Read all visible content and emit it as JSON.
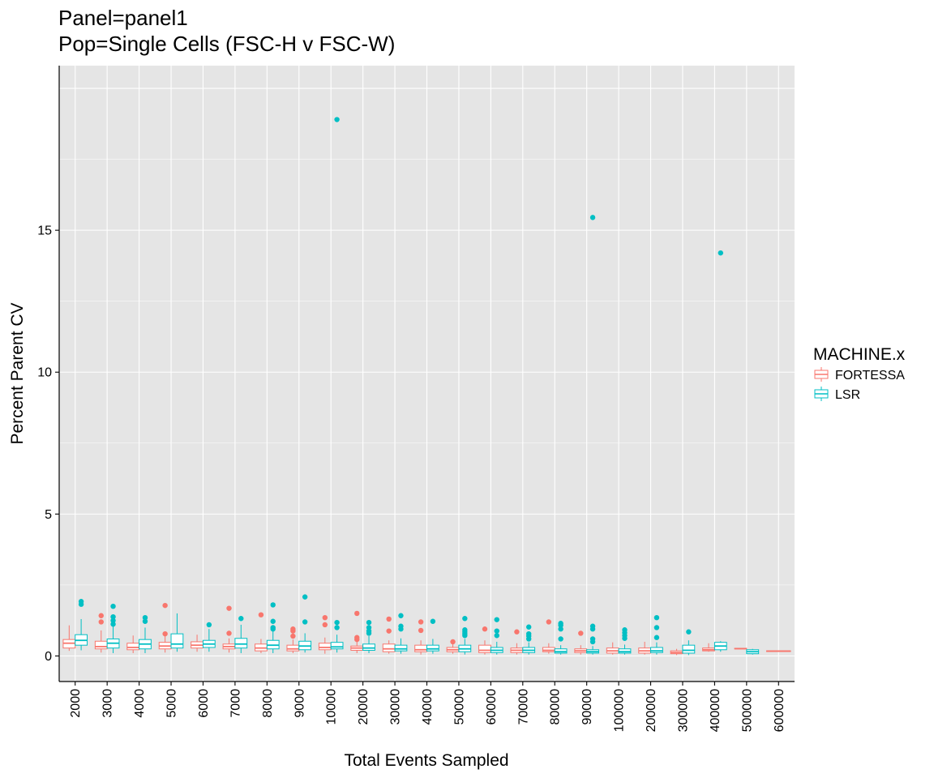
{
  "title_lines": [
    "Panel=panel1",
    "Pop=Single Cells (FSC-H v FSC-W)"
  ],
  "colors": {
    "panel_bg": "#E5E5E5",
    "grid": "#FFFFFF",
    "FORTESSA": "#F8766D",
    "LSR": "#00BFC4"
  },
  "chart_data": {
    "type": "boxplot",
    "title": "Panel=panel1\nPop=Single Cells (FSC-H v FSC-W)",
    "xlabel": "Total Events Sampled",
    "ylabel": "Percent Parent CV",
    "ylim": [
      -0.9,
      20.8
    ],
    "y_ticks": [
      0,
      5,
      10,
      15
    ],
    "grid": true,
    "legend": {
      "title": "MACHINE.x",
      "position": "right",
      "entries": [
        "FORTESSA",
        "LSR"
      ]
    },
    "categories": [
      "2000",
      "3000",
      "4000",
      "5000",
      "6000",
      "7000",
      "8000",
      "9000",
      "10000",
      "20000",
      "30000",
      "40000",
      "50000",
      "60000",
      "70000",
      "80000",
      "90000",
      "100000",
      "200000",
      "300000",
      "400000",
      "500000",
      "600000"
    ],
    "series": [
      {
        "name": "FORTESSA",
        "boxes": [
          {
            "x": "2000",
            "min": 0.18,
            "q1": 0.28,
            "median": 0.45,
            "q3": 0.58,
            "max": 1.08,
            "outliers": []
          },
          {
            "x": "3000",
            "min": 0.12,
            "q1": 0.25,
            "median": 0.33,
            "q3": 0.52,
            "max": 0.9,
            "outliers": [
              1.42,
              1.2
            ]
          },
          {
            "x": "4000",
            "min": 0.1,
            "q1": 0.22,
            "median": 0.3,
            "q3": 0.45,
            "max": 0.72,
            "outliers": []
          },
          {
            "x": "5000",
            "min": 0.12,
            "q1": 0.25,
            "median": 0.35,
            "q3": 0.48,
            "max": 0.72,
            "outliers": [
              1.78,
              0.78
            ]
          },
          {
            "x": "6000",
            "min": 0.15,
            "q1": 0.28,
            "median": 0.38,
            "q3": 0.5,
            "max": 0.75,
            "outliers": []
          },
          {
            "x": "7000",
            "min": 0.12,
            "q1": 0.25,
            "median": 0.33,
            "q3": 0.42,
            "max": 0.62,
            "outliers": [
              1.68,
              0.8
            ]
          },
          {
            "x": "8000",
            "min": 0.1,
            "q1": 0.18,
            "median": 0.28,
            "q3": 0.42,
            "max": 0.6,
            "outliers": [
              1.45
            ]
          },
          {
            "x": "9000",
            "min": 0.1,
            "q1": 0.18,
            "median": 0.25,
            "q3": 0.38,
            "max": 0.58,
            "outliers": [
              0.95,
              0.88,
              0.7
            ]
          },
          {
            "x": "10000",
            "min": 0.08,
            "q1": 0.22,
            "median": 0.3,
            "q3": 0.45,
            "max": 0.65,
            "outliers": [
              1.35,
              1.1
            ]
          },
          {
            "x": "20000",
            "min": 0.1,
            "q1": 0.2,
            "median": 0.28,
            "q3": 0.35,
            "max": 0.5,
            "outliers": [
              1.5,
              0.65,
              0.58
            ]
          },
          {
            "x": "30000",
            "min": 0.08,
            "q1": 0.15,
            "median": 0.25,
            "q3": 0.42,
            "max": 0.55,
            "outliers": [
              1.3,
              0.88
            ]
          },
          {
            "x": "40000",
            "min": 0.05,
            "q1": 0.15,
            "median": 0.22,
            "q3": 0.38,
            "max": 0.55,
            "outliers": [
              1.2,
              0.9
            ]
          },
          {
            "x": "50000",
            "min": 0.08,
            "q1": 0.15,
            "median": 0.22,
            "q3": 0.3,
            "max": 0.42,
            "outliers": [
              0.5
            ]
          },
          {
            "x": "60000",
            "min": 0.05,
            "q1": 0.12,
            "median": 0.2,
            "q3": 0.38,
            "max": 0.55,
            "outliers": [
              0.95
            ]
          },
          {
            "x": "70000",
            "min": 0.05,
            "q1": 0.12,
            "median": 0.2,
            "q3": 0.28,
            "max": 0.45,
            "outliers": [
              0.85
            ]
          },
          {
            "x": "80000",
            "min": 0.08,
            "q1": 0.15,
            "median": 0.2,
            "q3": 0.3,
            "max": 0.45,
            "outliers": [
              1.2
            ]
          },
          {
            "x": "90000",
            "min": 0.05,
            "q1": 0.12,
            "median": 0.18,
            "q3": 0.25,
            "max": 0.38,
            "outliers": [
              0.8
            ]
          },
          {
            "x": "100000",
            "min": 0.05,
            "q1": 0.1,
            "median": 0.18,
            "q3": 0.28,
            "max": 0.48,
            "outliers": []
          },
          {
            "x": "200000",
            "min": 0.05,
            "q1": 0.1,
            "median": 0.18,
            "q3": 0.28,
            "max": 0.5,
            "outliers": []
          },
          {
            "x": "300000",
            "min": 0.03,
            "q1": 0.08,
            "median": 0.12,
            "q3": 0.18,
            "max": 0.25,
            "outliers": []
          },
          {
            "x": "400000",
            "min": 0.15,
            "q1": 0.18,
            "median": 0.22,
            "q3": 0.28,
            "max": 0.45,
            "outliers": []
          },
          {
            "x": "500000",
            "min": 0.24,
            "q1": 0.25,
            "median": 0.26,
            "q3": 0.27,
            "max": 0.28,
            "outliers": []
          },
          {
            "x": "600000",
            "min": 0.15,
            "q1": 0.16,
            "median": 0.17,
            "q3": 0.18,
            "max": 0.19,
            "outliers": []
          }
        ]
      },
      {
        "name": "LSR",
        "boxes": [
          {
            "x": "2000",
            "min": 0.2,
            "q1": 0.38,
            "median": 0.55,
            "q3": 0.75,
            "max": 1.3,
            "outliers": [
              1.92,
              1.82
            ]
          },
          {
            "x": "3000",
            "min": 0.1,
            "q1": 0.28,
            "median": 0.45,
            "q3": 0.6,
            "max": 1.05,
            "outliers": [
              1.75,
              1.38,
              1.25,
              1.12
            ]
          },
          {
            "x": "4000",
            "min": 0.1,
            "q1": 0.25,
            "median": 0.42,
            "q3": 0.58,
            "max": 1.0,
            "outliers": [
              1.35,
              1.22
            ]
          },
          {
            "x": "5000",
            "min": 0.15,
            "q1": 0.28,
            "median": 0.42,
            "q3": 0.78,
            "max": 1.5,
            "outliers": []
          },
          {
            "x": "6000",
            "min": 0.15,
            "q1": 0.3,
            "median": 0.42,
            "q3": 0.55,
            "max": 0.95,
            "outliers": [
              1.1
            ]
          },
          {
            "x": "7000",
            "min": 0.1,
            "q1": 0.28,
            "median": 0.42,
            "q3": 0.62,
            "max": 1.1,
            "outliers": [
              1.32
            ]
          },
          {
            "x": "8000",
            "min": 0.1,
            "q1": 0.25,
            "median": 0.38,
            "q3": 0.55,
            "max": 0.9,
            "outliers": [
              1.8,
              1.22,
              1.0,
              0.95
            ]
          },
          {
            "x": "9000",
            "min": 0.12,
            "q1": 0.22,
            "median": 0.35,
            "q3": 0.52,
            "max": 0.8,
            "outliers": [
              2.08,
              1.2
            ]
          },
          {
            "x": "10000",
            "min": 0.12,
            "q1": 0.25,
            "median": 0.32,
            "q3": 0.48,
            "max": 0.75,
            "outliers": [
              18.9,
              1.18,
              1.0
            ]
          },
          {
            "x": "20000",
            "min": 0.1,
            "q1": 0.2,
            "median": 0.28,
            "q3": 0.42,
            "max": 0.7,
            "outliers": [
              1.18,
              1.0,
              0.88,
              0.8
            ]
          },
          {
            "x": "30000",
            "min": 0.08,
            "q1": 0.18,
            "median": 0.25,
            "q3": 0.38,
            "max": 0.62,
            "outliers": [
              1.42,
              1.05,
              0.95
            ]
          },
          {
            "x": "40000",
            "min": 0.08,
            "q1": 0.18,
            "median": 0.25,
            "q3": 0.38,
            "max": 0.6,
            "outliers": [
              1.22
            ]
          },
          {
            "x": "50000",
            "min": 0.05,
            "q1": 0.15,
            "median": 0.25,
            "q3": 0.38,
            "max": 0.6,
            "outliers": [
              1.32,
              0.92,
              0.85,
              0.78,
              0.72
            ]
          },
          {
            "x": "60000",
            "min": 0.05,
            "q1": 0.12,
            "median": 0.2,
            "q3": 0.3,
            "max": 0.5,
            "outliers": [
              1.28,
              0.88,
              0.72
            ]
          },
          {
            "x": "70000",
            "min": 0.05,
            "q1": 0.12,
            "median": 0.2,
            "q3": 0.3,
            "max": 0.48,
            "outliers": [
              1.02,
              0.78,
              0.7,
              0.6
            ]
          },
          {
            "x": "80000",
            "min": 0.05,
            "q1": 0.1,
            "median": 0.15,
            "q3": 0.25,
            "max": 0.38,
            "outliers": [
              1.15,
              1.08,
              0.95,
              0.6
            ]
          },
          {
            "x": "90000",
            "min": 0.05,
            "q1": 0.1,
            "median": 0.15,
            "q3": 0.22,
            "max": 0.35,
            "outliers": [
              15.45,
              1.05,
              0.95,
              0.6,
              0.5
            ]
          },
          {
            "x": "100000",
            "min": 0.05,
            "q1": 0.1,
            "median": 0.15,
            "q3": 0.25,
            "max": 0.4,
            "outliers": [
              0.92,
              0.82,
              0.72,
              0.62
            ]
          },
          {
            "x": "200000",
            "min": 0.05,
            "q1": 0.12,
            "median": 0.18,
            "q3": 0.3,
            "max": 0.48,
            "outliers": [
              1.35,
              1.0,
              0.65
            ]
          },
          {
            "x": "300000",
            "min": 0.03,
            "q1": 0.1,
            "median": 0.2,
            "q3": 0.38,
            "max": 0.55,
            "outliers": [
              0.85
            ]
          },
          {
            "x": "400000",
            "min": 0.15,
            "q1": 0.22,
            "median": 0.35,
            "q3": 0.48,
            "max": 0.52,
            "outliers": [
              14.2
            ]
          },
          {
            "x": "500000",
            "min": 0.05,
            "q1": 0.08,
            "median": 0.15,
            "q3": 0.22,
            "max": 0.25,
            "outliers": []
          }
        ]
      }
    ]
  }
}
